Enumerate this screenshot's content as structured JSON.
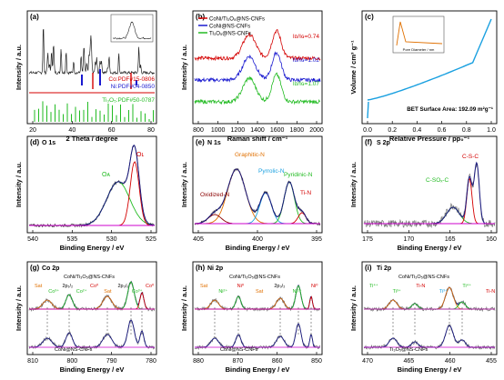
{
  "panels": [
    {
      "id": "a",
      "letter": "(a)",
      "xlabel": "2 Theta / degree",
      "ylabel": "Intensity / a.u.",
      "xticks": [
        "20",
        "40",
        "60",
        "80"
      ],
      "legend": [
        {
          "text": "Co:PDF#15-0806",
          "color": "#d40000"
        },
        {
          "text": "Ni:PDF#04-0850",
          "color": "#1a1ad0"
        },
        {
          "text": "Ti₃O₅:PDF#50-0787",
          "color": "#22bb22"
        }
      ]
    },
    {
      "id": "b",
      "letter": "(b)",
      "xlabel": "Raman shift / cm⁻¹",
      "ylabel": "Intensity / a.u.",
      "xticks": [
        "800",
        "1000",
        "1200",
        "1400",
        "1600",
        "1800",
        "2000"
      ],
      "legend": [
        {
          "text": "CoNi/Ti₃O₅@NS-CNFs",
          "color": "#d40000"
        },
        {
          "text": "CoNi@NS-CNFs",
          "color": "#1a1ad0"
        },
        {
          "text": "Ti₃O₅@NS-CNFs",
          "color": "#22bb22"
        }
      ],
      "ratios": [
        {
          "text": "Iᴅ/Iɢ=0.74",
          "color": "#d40000"
        },
        {
          "text": "Iᴅ/Iɢ=1.02",
          "color": "#1a1ad0"
        },
        {
          "text": "Iᴅ/Iɢ=1.07",
          "color": "#22bb22"
        }
      ]
    },
    {
      "id": "c",
      "letter": "(c)",
      "xlabel": "Relative Pressure / pp₀⁻¹",
      "ylabel": "Volume / cm³ g⁻¹",
      "xticks": [
        "0.0",
        "0.2",
        "0.4",
        "0.6",
        "0.8",
        "1.0"
      ],
      "annotation": "BET Surface Area: 192.09 m²g⁻¹",
      "inset_xlabel": "Pore Diameter / nm"
    },
    {
      "id": "d",
      "letter": "(d)",
      "title": "O 1s",
      "xlabel": "Binding Energy / eV",
      "ylabel": "Intensity / a.u.",
      "xticks": [
        "540",
        "535",
        "530",
        "525"
      ],
      "labels": [
        {
          "text": "Oᴀ",
          "color": "#22bb22"
        },
        {
          "text": "Oʟ",
          "color": "#d40000"
        }
      ]
    },
    {
      "id": "e",
      "letter": "(e)",
      "title": "N 1s",
      "xlabel": "Binding Energy / eV",
      "ylabel": "Intensity / a.u.",
      "xticks": [
        "405",
        "400",
        "395"
      ],
      "labels": [
        {
          "text": "Graphitic-N",
          "color": "#e07000"
        },
        {
          "text": "Pyrrolic-N",
          "color": "#1aa0e0"
        },
        {
          "text": "Pyridinic-N",
          "color": "#22bb22"
        },
        {
          "text": "Oxidized-N",
          "color": "#8a0000"
        },
        {
          "text": "Ti-N",
          "color": "#d40000"
        }
      ]
    },
    {
      "id": "f",
      "letter": "(f)",
      "title": "S 2p",
      "xlabel": "Binding Energy / eV",
      "ylabel": "Intensity / a.u.",
      "xticks": [
        "175",
        "170",
        "165",
        "160"
      ],
      "labels": [
        {
          "text": "C-S-C",
          "color": "#d40000"
        },
        {
          "text": "C-SOₓ-C",
          "color": "#22bb22"
        }
      ]
    },
    {
      "id": "g",
      "letter": "(g)",
      "title": "Co 2p",
      "xlabel": "Binding Energy / eV",
      "ylabel": "Intensity / a.u.",
      "xticks": [
        "810",
        "800",
        "790",
        "780"
      ],
      "sample_top": "CoNi/Ti₃O₅@NS-CNFs",
      "sample_bottom": "CoNi@NS-CNFs",
      "labels": [
        {
          "text": "Sat",
          "color": "#e07000"
        },
        {
          "text": "Co³⁺",
          "color": "#22bb22"
        },
        {
          "text": "2p₁/₂",
          "color": "#000000"
        },
        {
          "text": "Co²⁺",
          "color": "#22bb22"
        },
        {
          "text": "Co⁰",
          "color": "#d40000"
        },
        {
          "text": "Sat",
          "color": "#e07000"
        },
        {
          "text": "2p₃/₂",
          "color": "#000000"
        },
        {
          "text": "Co³⁺",
          "color": "#22bb22"
        },
        {
          "text": "Co⁰",
          "color": "#d40000"
        }
      ]
    },
    {
      "id": "h",
      "letter": "(h)",
      "title": "Ni 2p",
      "xlabel": "Binding Energy / eV",
      "ylabel": "Intensity / a.u.",
      "xticks": [
        "880",
        "870",
        "860",
        "850"
      ],
      "sample_top": "CoNi/Ti₃O₅@NS-CNFs",
      "sample_bottom": "CoNi@NS-CNFs",
      "labels": [
        {
          "text": "Sat",
          "color": "#e07000"
        },
        {
          "text": "Ni²⁺",
          "color": "#22bb22"
        },
        {
          "text": "Ni⁰",
          "color": "#d40000"
        },
        {
          "text": "Sat",
          "color": "#e07000"
        },
        {
          "text": "2p₃/₂",
          "color": "#000000"
        },
        {
          "text": "Ni²⁺",
          "color": "#22bb22"
        },
        {
          "text": "Ni⁰",
          "color": "#d40000"
        }
      ]
    },
    {
      "id": "i",
      "letter": "(i)",
      "title": "Ti 2p",
      "xlabel": "Binding Energy / eV",
      "ylabel": "Intensity / a.u.",
      "xticks": [
        "470",
        "465",
        "460",
        "455"
      ],
      "sample_top": "CoNi/Ti₃O₅@NS-CNFs",
      "sample_bottom": "Ti₃O₅@NS-CNFs",
      "labels": [
        {
          "text": "Ti⁴⁺",
          "color": "#22bb22"
        },
        {
          "text": "Ti³⁺",
          "color": "#22bb22"
        },
        {
          "text": "Ti-N",
          "color": "#d40000"
        },
        {
          "text": "Ti³⁺",
          "color": "#1aa0e0"
        },
        {
          "text": "Ti⁴⁺",
          "color": "#22bb22"
        },
        {
          "text": "Ti-N",
          "color": "#d40000"
        }
      ]
    }
  ]
}
